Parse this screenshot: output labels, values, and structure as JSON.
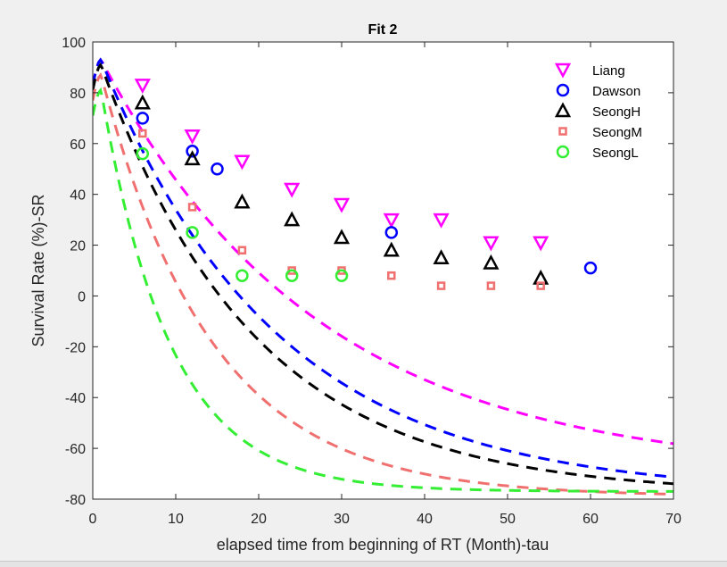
{
  "chart_data": {
    "type": "scatter",
    "title": "Fit 2",
    "xlabel": "elapsed time from beginning of RT (Month)-tau",
    "ylabel": "Survival Rate (%)-SR",
    "xlim": [
      0,
      70
    ],
    "ylim": [
      -80,
      100
    ],
    "xticks": [
      0,
      10,
      20,
      30,
      40,
      50,
      60,
      70
    ],
    "yticks": [
      -80,
      -60,
      -40,
      -20,
      0,
      20,
      40,
      60,
      80,
      100
    ],
    "legend_position": "top-right",
    "grid": false,
    "series": [
      {
        "name": "Liang",
        "marker": "triangle-down",
        "color": "#ff00ff",
        "points": [
          [
            6,
            83
          ],
          [
            12,
            63
          ],
          [
            18,
            53
          ],
          [
            24,
            42
          ],
          [
            30,
            36
          ],
          [
            36,
            30
          ],
          [
            42,
            30
          ],
          [
            48,
            21
          ],
          [
            54,
            21
          ]
        ],
        "fit_curve": {
          "peak": [
            1,
            93
          ],
          "asymptote": -70,
          "rate": 0.038
        }
      },
      {
        "name": "Dawson",
        "marker": "circle",
        "color": "#0000ff",
        "points": [
          [
            6,
            70
          ],
          [
            12,
            57
          ],
          [
            15,
            50
          ],
          [
            36,
            25
          ],
          [
            60,
            11
          ]
        ],
        "fit_curve": {
          "peak": [
            1,
            93
          ],
          "asymptote": -78,
          "rate": 0.047
        }
      },
      {
        "name": "SeongH",
        "marker": "triangle-up",
        "color": "#000000",
        "points": [
          [
            6,
            76
          ],
          [
            12,
            54
          ],
          [
            18,
            37
          ],
          [
            24,
            30
          ],
          [
            30,
            23
          ],
          [
            36,
            18
          ],
          [
            42,
            15
          ],
          [
            48,
            13
          ],
          [
            54,
            7
          ]
        ],
        "fit_curve": {
          "peak": [
            1,
            91
          ],
          "asymptote": -78,
          "rate": 0.054
        }
      },
      {
        "name": "SeongM",
        "marker": "square",
        "color": "#f07070",
        "points": [
          [
            6,
            64
          ],
          [
            12,
            35
          ],
          [
            18,
            18
          ],
          [
            24,
            10
          ],
          [
            30,
            10
          ],
          [
            36,
            8
          ],
          [
            42,
            4
          ],
          [
            48,
            4
          ],
          [
            54,
            4
          ]
        ],
        "fit_curve": {
          "peak": [
            1,
            87
          ],
          "asymptote": -79,
          "rate": 0.075
        }
      },
      {
        "name": "SeongL",
        "marker": "circle",
        "color": "#33ee33",
        "points": [
          [
            6,
            56
          ],
          [
            12,
            25
          ],
          [
            18,
            8
          ],
          [
            24,
            8
          ],
          [
            30,
            8
          ]
        ],
        "fit_curve": {
          "peak": [
            1,
            81
          ],
          "asymptote": -77,
          "rate": 0.12
        }
      }
    ]
  }
}
